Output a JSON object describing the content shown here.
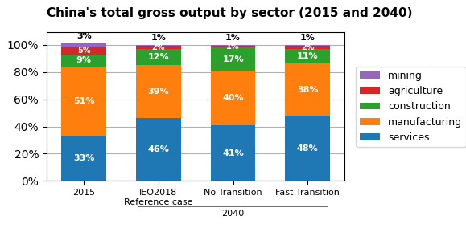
{
  "chart_data": {
    "type": "bar",
    "stacked": true,
    "title": "China's total gross output by sector (2015 and 2040)",
    "categories": [
      "2015",
      "IEO2018\nReference case",
      "No Transition",
      "Fast Transition"
    ],
    "series": [
      {
        "name": "services",
        "values": [
          33,
          46,
          41,
          48
        ],
        "value_labels": [
          "33%",
          "46%",
          "41%",
          "48%"
        ]
      },
      {
        "name": "manufacturing",
        "values": [
          51,
          39,
          40,
          38
        ],
        "value_labels": [
          "51%",
          "39%",
          "40%",
          "38%"
        ]
      },
      {
        "name": "construction",
        "values": [
          9,
          12,
          17,
          11
        ],
        "value_labels": [
          "9%",
          "12%",
          "17%",
          "11%"
        ]
      },
      {
        "name": "agriculture",
        "values": [
          5,
          2,
          1,
          2
        ],
        "value_labels": [
          "5%",
          "2%",
          "1%",
          "2%"
        ]
      },
      {
        "name": "mining",
        "values": [
          3,
          1,
          1,
          1
        ],
        "value_labels": [
          "3%",
          "1%",
          "1%",
          "1%"
        ]
      }
    ],
    "data_labels": true,
    "ylim": [
      0,
      109
    ],
    "yticks": [
      {
        "value": 0,
        "label": "0%"
      },
      {
        "value": 20,
        "label": "20%"
      },
      {
        "value": 40,
        "label": "40%"
      },
      {
        "value": 60,
        "label": "60%"
      },
      {
        "value": 80,
        "label": "80%"
      },
      {
        "value": 100,
        "label": "100%"
      }
    ],
    "grid": true,
    "legend": "center left",
    "annotations": [
      {
        "text": "2040",
        "from": "IEO2018\nReference case",
        "to": "Fast Transition"
      }
    ]
  }
}
